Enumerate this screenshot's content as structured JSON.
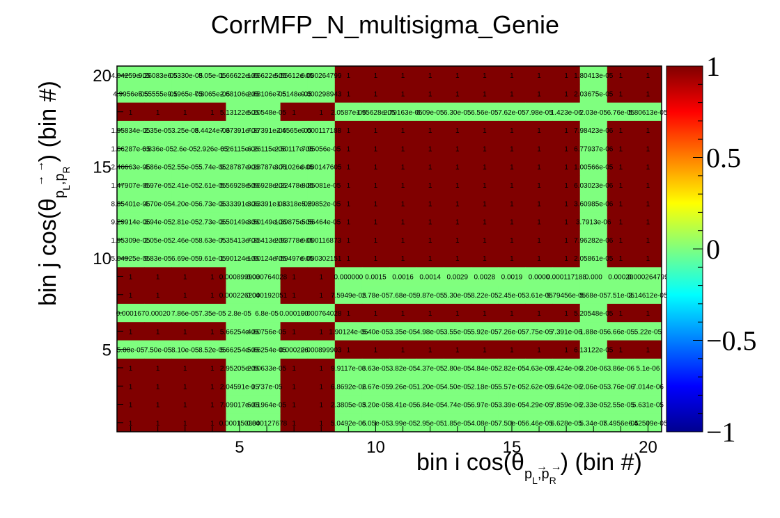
{
  "chart_data": {
    "type": "heatmap",
    "title": "CorrMFP_N_multisigma_Genie",
    "xlabel": {
      "main": "bin i cos(θ",
      "arrows": "→ →",
      "sub": "p",
      "subsub": "L",
      "sep": ",",
      "sub2": "p",
      "subsub2": "R",
      "tail": ") (bin #)"
    },
    "ylabel": {
      "main": "bin j cos(θ",
      "arrows": "→ →",
      "sub": "p",
      "subsub": "L",
      "sep": ",",
      "sub2": "p",
      "subsub2": "R",
      "tail": ") (bin #)"
    },
    "x_range": [
      0.5,
      20.5
    ],
    "y_range": [
      0.5,
      20.5
    ],
    "x_ticks": [
      "5",
      "10",
      "15",
      "20"
    ],
    "y_ticks": [
      "5",
      "10",
      "15",
      "20"
    ],
    "z_range": [
      -1,
      1
    ],
    "z_ticks": [
      "1",
      "0.5",
      "0",
      "−0.5",
      "−1"
    ],
    "colormap": "jet",
    "colors": {
      "high": "#800000",
      "mid": "#7fff7f",
      "low": "#00008f"
    },
    "grid_size": 20,
    "rows": [
      {
        "bin": 20,
        "cells": [
          "4.04259e-05",
          "9.26083e-05",
          "6.5330e-05",
          "8.05e-05",
          "1.66622e-05",
          "1.66622e-05",
          "5.55612e-05",
          "0.000264799",
          "1",
          "1",
          "1",
          "1",
          "1",
          "1",
          "1",
          "1",
          "1",
          "1.80413e-05",
          "1",
          "1"
        ]
      },
      {
        "bin": 19,
        "cells": [
          "4.9956e-05",
          "5.55555e-05",
          "9.1965e-05",
          "7.8065e-05",
          "2.68106e-05",
          "2.68106e-05",
          "7.5148e-05",
          "0.000298943",
          "1",
          "1",
          "1",
          "1",
          "1",
          "1",
          "1",
          "1",
          "1",
          "2.03675e-05",
          "1",
          "1"
        ]
      },
      {
        "bin": 18,
        "cells": [
          "1",
          "1",
          "1",
          "1",
          "5.13122e-05",
          "5.20548e-05",
          "1",
          "1",
          "2.0587e-05",
          "1.95628e-05",
          "2.79163e-05",
          "6.09e-05",
          "6.30e-05",
          "6.56e-05",
          "7.62e-05",
          "7.98e-05",
          "1.423e-06",
          "2.03e-05",
          "6.76e-05",
          "5.80613e-05"
        ]
      },
      {
        "bin": 17,
        "cells": [
          "1.95834e-05",
          "2.35e-05",
          "3.25e-05",
          "8.4424e-06",
          "7.37391e-06",
          "7.37391e-06",
          "2.4565e-05",
          "0.000117188",
          "1",
          "1",
          "1",
          "1",
          "1",
          "1",
          "1",
          "1",
          "1",
          "7.98423e-06",
          "1",
          "1"
        ]
      },
      {
        "bin": 16,
        "cells": [
          "1.66287e-05",
          "6.836e-05",
          "2.6e-05",
          "2.926e-05",
          "6.26115e-06",
          "6.26115e-06",
          "2.50117e-05",
          "7.95056e-05",
          "1",
          "1",
          "1",
          "1",
          "1",
          "1",
          "1",
          "1",
          "1",
          "6.77937e-06",
          "1",
          "1"
        ]
      },
      {
        "bin": 15,
        "cells": [
          "2.46663e-05",
          "4.86e-05",
          "2.55e-05",
          "5.74e-05",
          "9.28787e-06",
          "9.28787e-06",
          "3.71026e-05",
          "0.000147605",
          "1",
          "1",
          "1",
          "1",
          "1",
          "1",
          "1",
          "1",
          "1",
          "1.00566e-05",
          "1",
          "1"
        ]
      },
      {
        "bin": 14,
        "cells": [
          "1.47907e-05",
          "6.97e-05",
          "2.41e-05",
          "2.61e-05",
          "5.56928e-06",
          "5.56928e-06",
          "2.22478e-05",
          "8.85081e-05",
          "1",
          "1",
          "1",
          "1",
          "1",
          "1",
          "1",
          "1",
          "1",
          "6.03023e-06",
          "1",
          "1"
        ]
      },
      {
        "bin": 13,
        "cells": [
          "8.85401e-05",
          "4.70e-05",
          "4.20e-05",
          "6.73e-05",
          "3.33391e-06",
          "3.33391e-06",
          "1.3318e-05",
          "5.29852e-05",
          "1",
          "1",
          "1",
          "1",
          "1",
          "1",
          "1",
          "1",
          "1",
          "3.60985e-06",
          "1",
          "1"
        ]
      },
      {
        "bin": 12,
        "cells": [
          "9.29914e-05",
          "3.94e-05",
          "2.81e-05",
          "2.73e-05",
          "3.50149e-06",
          "3.50149e-06",
          "1.39875e-05",
          "5.56464e-05",
          "1",
          "1",
          "1",
          "1",
          "1",
          "1",
          "1",
          "1",
          "1",
          "3.7913e-06",
          "1",
          "1"
        ]
      },
      {
        "bin": 11,
        "cells": [
          "1.95309e-05",
          "2.05e-05",
          "2.46e-05",
          "8.63e-05",
          "7.35413e-06",
          "7.35413e-06",
          "2.93778e-05",
          "0.000116873",
          "1",
          "1",
          "1",
          "1",
          "1",
          "1",
          "1",
          "1",
          "1",
          "7.96282e-06",
          "1",
          "1"
        ]
      },
      {
        "bin": 10,
        "cells": [
          "5.04925e-05",
          "9.83e-05",
          "6.69e-05",
          "9.61e-05",
          "1.90124e-05",
          "1.90124e-05",
          "7.59497e-05",
          "0.000302151",
          "1",
          "1",
          "1",
          "1",
          "1",
          "1",
          "1",
          "1",
          "1",
          "2.05861e-05",
          "1",
          "1"
        ]
      },
      {
        "bin": 9,
        "cells": [
          "1",
          "1",
          "1",
          "1",
          "0.000899903",
          "0.000764028",
          "1",
          "1",
          "0.000000",
          "0.0015",
          "0.0016",
          "0.0014",
          "0.0029",
          "0.0028",
          "0.0019",
          "0.0000",
          "0.000117188",
          "0.000",
          "0.00020",
          "0.000264799"
        ]
      },
      {
        "bin": 8,
        "cells": [
          "1",
          "1",
          "1",
          "1",
          "0.000226204",
          "0.000192051",
          "1",
          "1",
          "7.5949e-05",
          "2.78e-05",
          "7.68e-05",
          "9.87e-05",
          "5.30e-05",
          "8.22e-05",
          "2.45e-05",
          "3.61e-05",
          "9.79456e-05",
          "5.68e-05",
          "7.51e-05",
          "3.14612e-05"
        ]
      },
      {
        "bin": 7,
        "cells": [
          "0.000167",
          "0.00020",
          "7.86e-05",
          "7.35e-05",
          "2.8e-05",
          "6.8e-05",
          "0.000190",
          "0.000764028",
          "1",
          "1",
          "1",
          "1",
          "1",
          "1",
          "1",
          "1",
          "1",
          "5.20548e-05",
          "1",
          "1"
        ]
      },
      {
        "bin": 6,
        "cells": [
          "1",
          "1",
          "1",
          "1",
          "5.66254e-05",
          "4.80756e-05",
          "1",
          "1",
          "1.90124e-05",
          "5.40e-05",
          "3.35e-05",
          "4.98e-05",
          "3.55e-05",
          "5.92e-05",
          "7.26e-05",
          "7.75e-05",
          "7.391e-06",
          "1.88e-05",
          "6.66e-05",
          "5.22e-05"
        ]
      },
      {
        "bin": 5,
        "cells": [
          "5.00e-05",
          "7.50e-05",
          "8.10e-05",
          "8.52e-05",
          "5.66254e-05",
          "5.66254e-05",
          "0.000226",
          "0.000899903",
          "1",
          "1",
          "1",
          "1",
          "1",
          "1",
          "1",
          "1",
          "1",
          "6.13122e-05",
          "1",
          "1"
        ]
      },
      {
        "bin": 4,
        "cells": [
          "1",
          "1",
          "1",
          "1",
          "2.95205e-05",
          "2.50633e-05",
          "1",
          "1",
          "9.9117e-06",
          "3.63e-05",
          "3.82e-05",
          "4.37e-05",
          "2.80e-05",
          "4.84e-05",
          "2.82e-05",
          "4.63e-05",
          "8.424e-06",
          "3.20e-06",
          "3.86e-06",
          "5.1e-06"
        ]
      },
      {
        "bin": 3,
        "cells": [
          "1",
          "1",
          "1",
          "1",
          "2.04591e-05",
          "1.737e-05",
          "1",
          "1",
          "6.8692e-06",
          "2.67e-05",
          "9.26e-05",
          "1.20e-05",
          "4.50e-05",
          "2.18e-05",
          "5.57e-05",
          "2.62e-05",
          "9.642e-06",
          "2.06e-05",
          "3.76e-06",
          "7.014e-06"
        ]
      },
      {
        "bin": 2,
        "cells": [
          "1",
          "1",
          "1",
          "1",
          "7.09017e-05",
          "6.01964e-05",
          "1",
          "1",
          "2.3805e-05",
          "3.20e-05",
          "8.41e-05",
          "6.84e-05",
          "4.74e-05",
          "6.97e-05",
          "3.39e-05",
          "4.29e-05",
          "7.859e-06",
          "2.33e-05",
          "2.55e-05",
          "5.631e-05"
        ]
      },
      {
        "bin": 1,
        "cells": [
          "1",
          "1",
          "1",
          "1",
          "0.000150384",
          "0.000127678",
          "1",
          "1",
          "5.0492e-05",
          "6.05e-05",
          "3.99e-05",
          "2.95e-05",
          "1.85e-05",
          "4.08e-05",
          "7.50e-05",
          "6.46e-05",
          "6.628e-05",
          "5.34e-05",
          "7.4956e-05",
          "6.42509e-05"
        ]
      }
    ]
  }
}
